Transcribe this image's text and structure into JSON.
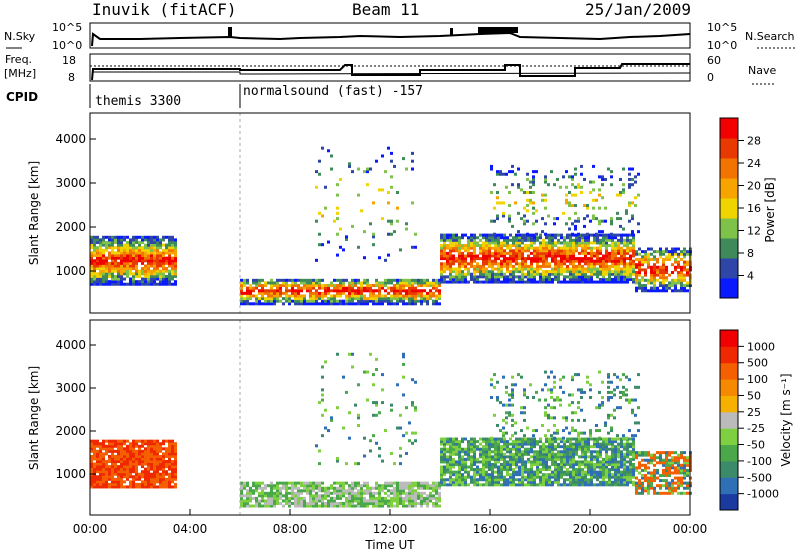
{
  "header": {
    "station": "Inuvik (fitACF)",
    "beam": "Beam 11",
    "date": "25/Jan/2009"
  },
  "strip_panels": {
    "nsky": {
      "left_label": "N.Sky",
      "left_ticks": [
        "10^5",
        "10^0"
      ],
      "right_ticks": [
        "10^5",
        "10^0"
      ],
      "right_label": "N.Search"
    },
    "freq": {
      "left_label_1": "Freq.",
      "left_label_2": "[MHz]",
      "left_ticks": [
        "18",
        "8"
      ],
      "right_ticks": [
        "60",
        "0"
      ],
      "right_label": "Nave"
    },
    "cpid": {
      "label": "CPID",
      "segments": [
        "themis 3300",
        "normalsound (fast) -157"
      ]
    }
  },
  "chart_data": [
    {
      "type": "heatmap",
      "title": "",
      "ylabel": "Slant Range [km]",
      "xlabel": "",
      "ylim": [
        0,
        4600
      ],
      "y_ticks": [
        "1000",
        "2000",
        "3000",
        "4000"
      ],
      "colorbar_label": "Power [dB]",
      "colorbar_ticks": [
        "4",
        "8",
        "12",
        "16",
        "20",
        "24",
        "28"
      ],
      "colors": [
        "#0a1aff",
        "#2e46a8",
        "#3f8a5a",
        "#7fc24a",
        "#f0d400",
        "#f7a400",
        "#f27300",
        "#e83a00",
        "#f20000"
      ]
    },
    {
      "type": "heatmap",
      "title": "",
      "ylabel": "Slant Range [km]",
      "xlabel": "Time UT",
      "ylim": [
        0,
        4600
      ],
      "y_ticks": [
        "1000",
        "2000",
        "3000",
        "4000"
      ],
      "x_ticks": [
        "00:00",
        "04:00",
        "08:00",
        "12:00",
        "16:00",
        "20:00",
        "00:00"
      ],
      "colorbar_label": "Velocity [m s⁻¹]",
      "colorbar_ticks": [
        "1000",
        "500",
        "100",
        "50",
        "25",
        "-25",
        "-50",
        "-100",
        "-500",
        "-1000"
      ],
      "colors": [
        "#1a3aa0",
        "#2f6fb5",
        "#3b8b6a",
        "#4aa84a",
        "#7fd040",
        "#bbbbbb",
        "#f6b000",
        "#f58a00",
        "#f46000",
        "#f02800",
        "#f00000"
      ]
    }
  ]
}
